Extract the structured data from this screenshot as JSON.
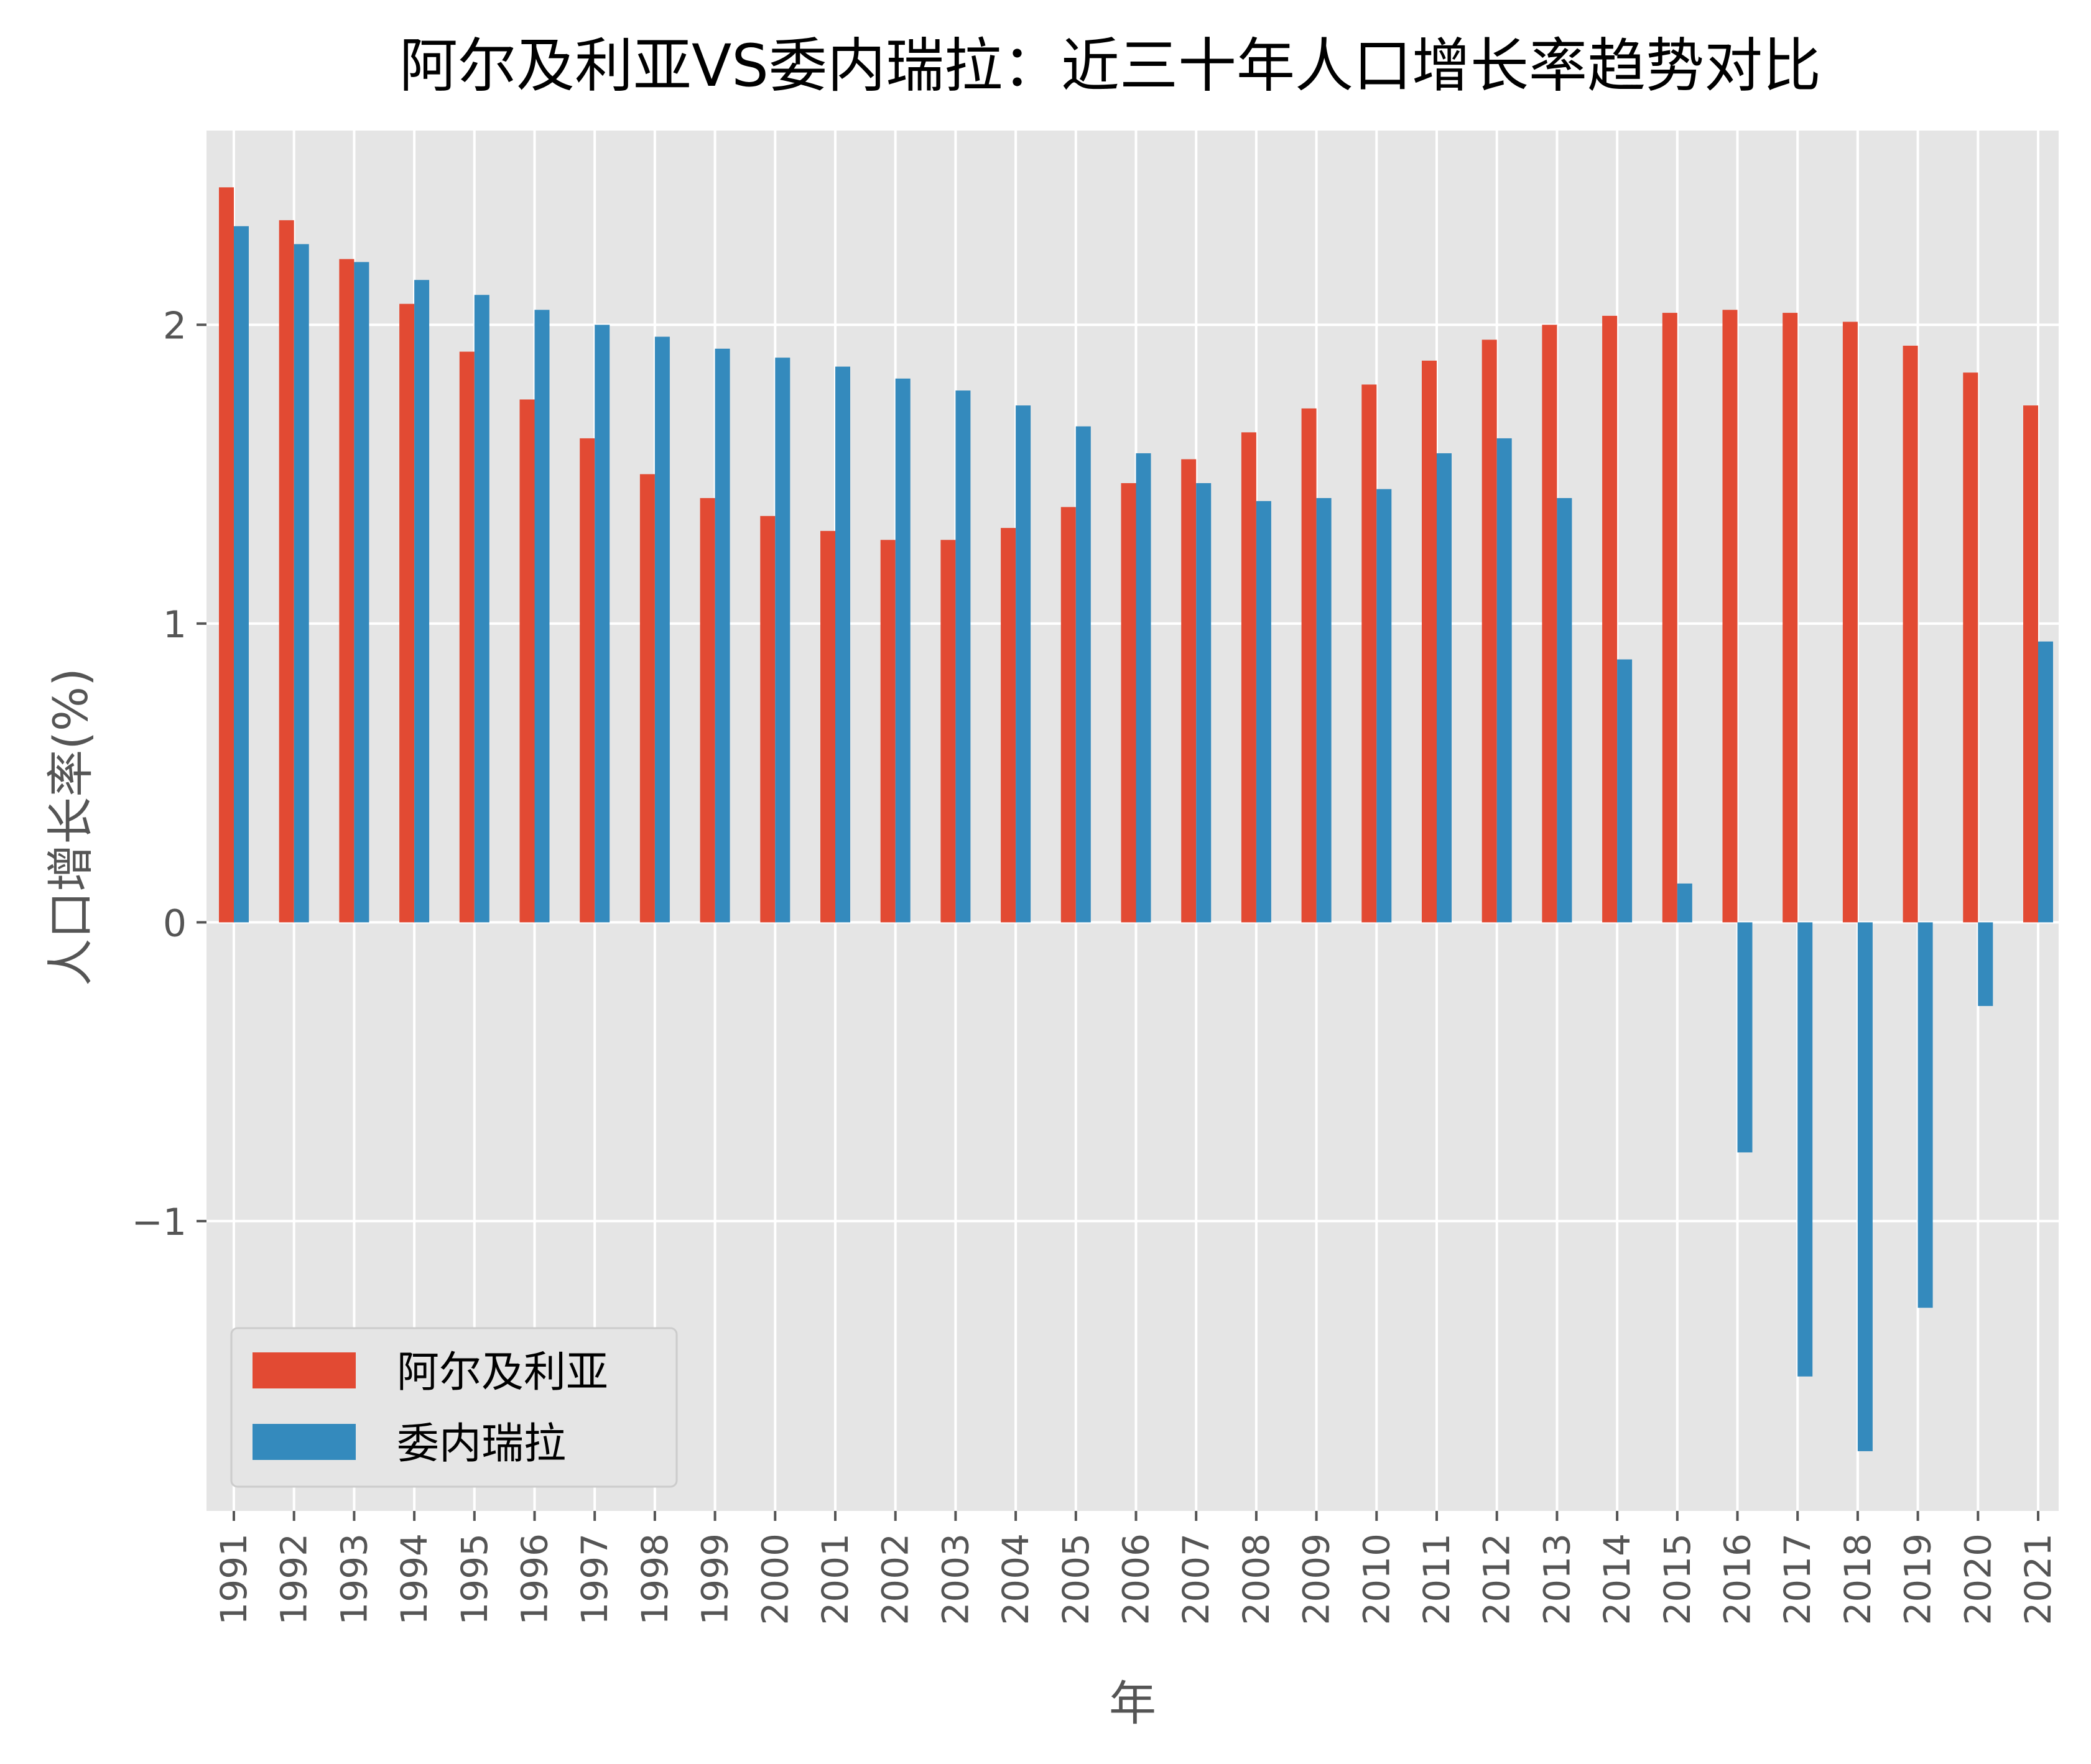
{
  "chart_data": {
    "type": "bar",
    "title": "阿尔及利亚VS委内瑞拉：近三十年人口增长率趋势对比",
    "xlabel": "年",
    "ylabel": "人口增长率(%)",
    "categories": [
      "1991",
      "1992",
      "1993",
      "1994",
      "1995",
      "1996",
      "1997",
      "1998",
      "1999",
      "2000",
      "2001",
      "2002",
      "2003",
      "2004",
      "2005",
      "2006",
      "2007",
      "2008",
      "2009",
      "2010",
      "2011",
      "2012",
      "2013",
      "2014",
      "2015",
      "2016",
      "2017",
      "2018",
      "2019",
      "2020",
      "2021"
    ],
    "series": [
      {
        "name": "阿尔及利亚",
        "color": "#E24A33",
        "values": [
          2.46,
          2.35,
          2.22,
          2.07,
          1.91,
          1.75,
          1.62,
          1.5,
          1.42,
          1.36,
          1.31,
          1.28,
          1.28,
          1.32,
          1.39,
          1.47,
          1.55,
          1.64,
          1.72,
          1.8,
          1.88,
          1.95,
          2.0,
          2.03,
          2.04,
          2.05,
          2.04,
          2.01,
          1.93,
          1.84,
          1.73
        ]
      },
      {
        "name": "委内瑞拉",
        "color": "#348ABD",
        "values": [
          2.33,
          2.27,
          2.21,
          2.15,
          2.1,
          2.05,
          2.0,
          1.96,
          1.92,
          1.89,
          1.86,
          1.82,
          1.78,
          1.73,
          1.66,
          1.57,
          1.47,
          1.41,
          1.42,
          1.45,
          1.57,
          1.62,
          1.42,
          0.88,
          0.13,
          -0.77,
          -1.52,
          -1.77,
          -1.29,
          -0.28,
          0.94
        ]
      }
    ],
    "ylim": [
      -1.97,
      2.65
    ],
    "yticks": [
      -1,
      0,
      1,
      2
    ],
    "grid": true,
    "legend": "lower-left"
  }
}
